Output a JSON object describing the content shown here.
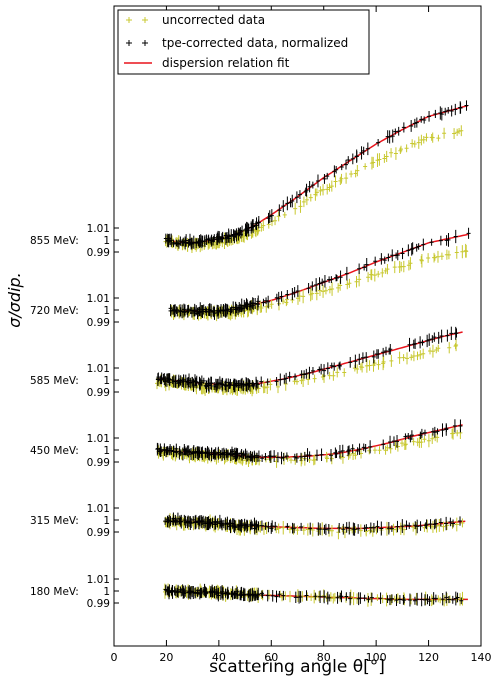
{
  "chart_data": {
    "type": "scatter",
    "xlabel": "scattering angle θ[°]",
    "ylabel": "σ/σdip.",
    "xlim": [
      0,
      140
    ],
    "xticks": [
      "0",
      "20",
      "40",
      "60",
      "80",
      "100",
      "120",
      "140"
    ],
    "energies": [
      "855 MeV:",
      "720 MeV:",
      "585 MeV:",
      "450 MeV:",
      "315 MeV:",
      "180 MeV:"
    ],
    "ytick_text": {
      "upper": "1.01",
      "mid": "1",
      "lower": "0.99"
    },
    "legend": {
      "placement": "top-left",
      "entries": [
        "uncorrected data",
        "tpe-corrected data, normalized",
        "dispersion relation fit"
      ]
    },
    "colors": {
      "uncorrected": "#c8c830",
      "corrected": "#000000",
      "fit": "#e8141c"
    },
    "curves": [
      {
        "energy": "855 MeV:",
        "fit": [
          [
            20,
            1.0
          ],
          [
            25,
            0.998
          ],
          [
            30,
            0.998
          ],
          [
            35,
            0.999
          ],
          [
            40,
            1.001
          ],
          [
            45,
            1.004
          ],
          [
            50,
            1.008
          ],
          [
            55,
            1.014
          ],
          [
            60,
            1.021
          ],
          [
            70,
            1.036
          ],
          [
            80,
            1.052
          ],
          [
            90,
            1.066
          ],
          [
            100,
            1.08
          ],
          [
            110,
            1.092
          ],
          [
            120,
            1.103
          ],
          [
            135,
            1.112
          ]
        ],
        "uncorrected_offset": [
          [
            20,
            -0.001
          ],
          [
            40,
            -0.003
          ],
          [
            60,
            -0.006
          ],
          [
            80,
            -0.01
          ],
          [
            100,
            -0.014
          ],
          [
            120,
            -0.018
          ],
          [
            135,
            -0.02
          ]
        ]
      },
      {
        "energy": "720 MeV:",
        "fit": [
          [
            22,
            1.0
          ],
          [
            30,
            0.999
          ],
          [
            40,
            0.999
          ],
          [
            45,
            1.0
          ],
          [
            50,
            1.003
          ],
          [
            60,
            1.008
          ],
          [
            70,
            1.015
          ],
          [
            80,
            1.023
          ],
          [
            90,
            1.031
          ],
          [
            100,
            1.04
          ],
          [
            110,
            1.048
          ],
          [
            120,
            1.056
          ],
          [
            135,
            1.063
          ]
        ],
        "uncorrected_offset": [
          [
            22,
            -0.001
          ],
          [
            40,
            -0.002
          ],
          [
            60,
            -0.004
          ],
          [
            80,
            -0.007
          ],
          [
            100,
            -0.01
          ],
          [
            120,
            -0.013
          ],
          [
            135,
            -0.014
          ]
        ]
      },
      {
        "energy": "585 MeV:",
        "fit": [
          [
            17,
            1.001
          ],
          [
            25,
            0.999
          ],
          [
            35,
            0.997
          ],
          [
            45,
            0.996
          ],
          [
            55,
            0.997
          ],
          [
            65,
            1.001
          ],
          [
            75,
            1.006
          ],
          [
            85,
            1.012
          ],
          [
            95,
            1.018
          ],
          [
            105,
            1.024
          ],
          [
            115,
            1.03
          ],
          [
            125,
            1.036
          ],
          [
            133,
            1.04
          ]
        ],
        "uncorrected_offset": [
          [
            17,
            -0.002
          ],
          [
            40,
            -0.003
          ],
          [
            60,
            -0.004
          ],
          [
            80,
            -0.006
          ],
          [
            100,
            -0.008
          ],
          [
            120,
            -0.01
          ],
          [
            133,
            -0.01
          ]
        ]
      },
      {
        "energy": "450 MeV:",
        "fit": [
          [
            17,
            1.0
          ],
          [
            30,
            0.998
          ],
          [
            45,
            0.996
          ],
          [
            55,
            0.994
          ],
          [
            65,
            0.994
          ],
          [
            75,
            0.995
          ],
          [
            85,
            0.997
          ],
          [
            95,
            1.001
          ],
          [
            105,
            1.006
          ],
          [
            115,
            1.012
          ],
          [
            125,
            1.017
          ],
          [
            133,
            1.021
          ]
        ],
        "uncorrected_offset": [
          [
            17,
            -0.002
          ],
          [
            40,
            -0.002
          ],
          [
            60,
            -0.002
          ],
          [
            80,
            -0.003
          ],
          [
            100,
            -0.004
          ],
          [
            120,
            -0.006
          ],
          [
            133,
            -0.006
          ]
        ]
      },
      {
        "energy": "315 MeV:",
        "fit": [
          [
            20,
            1.0
          ],
          [
            35,
            0.998
          ],
          [
            50,
            0.995
          ],
          [
            65,
            0.994
          ],
          [
            80,
            0.993
          ],
          [
            95,
            0.993
          ],
          [
            105,
            0.994
          ],
          [
            115,
            0.995
          ],
          [
            125,
            0.997
          ],
          [
            134,
            0.999
          ]
        ],
        "uncorrected_offset": [
          [
            20,
            -0.001
          ],
          [
            60,
            -0.001
          ],
          [
            100,
            -0.002
          ],
          [
            134,
            -0.002
          ]
        ]
      },
      {
        "energy": "180 MeV:",
        "fit": [
          [
            20,
            1.0
          ],
          [
            35,
            0.999
          ],
          [
            50,
            0.997
          ],
          [
            65,
            0.996
          ],
          [
            80,
            0.995
          ],
          [
            95,
            0.994
          ],
          [
            110,
            0.993
          ],
          [
            125,
            0.993
          ],
          [
            135,
            0.993
          ]
        ],
        "uncorrected_offset": [
          [
            20,
            0.0
          ],
          [
            135,
            0.0
          ]
        ]
      }
    ]
  }
}
